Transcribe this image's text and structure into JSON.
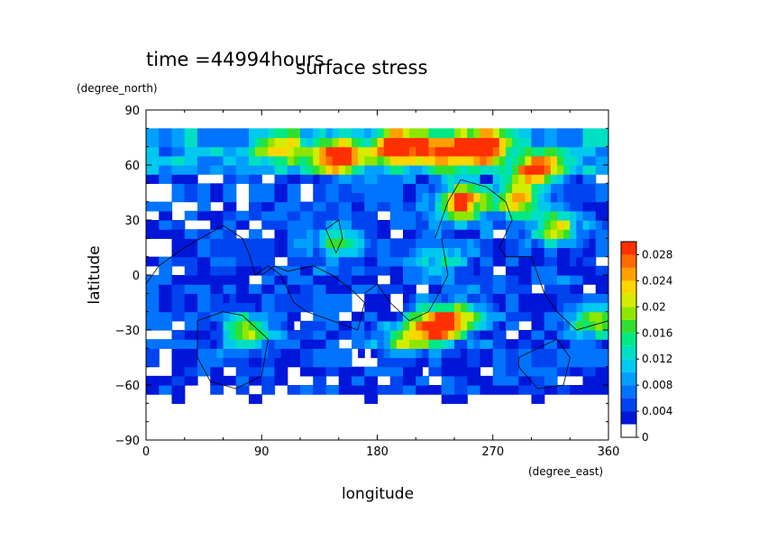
{
  "chart_data": {
    "type": "heatmap",
    "title": "surface stress",
    "time_label": "time =44994hours",
    "xlabel": "longitude",
    "ylabel": "latitude",
    "x_unit": "(degree_east)",
    "y_unit": "(degree_north)",
    "xlim": [
      0,
      360
    ],
    "ylim": [
      -90,
      90
    ],
    "x_ticks": [
      "0",
      "90",
      "180",
      "270",
      "360"
    ],
    "y_ticks": [
      "90",
      "60",
      "30",
      "0",
      "−30",
      "−60",
      "−90"
    ],
    "x_tick_values": [
      0,
      90,
      180,
      270,
      360
    ],
    "y_tick_values": [
      90,
      60,
      30,
      0,
      -30,
      -60,
      -90
    ],
    "colorbar": {
      "min": 0,
      "max": 0.03,
      "labels": [
        "0.028",
        "0.024",
        "0.02",
        "0.016",
        "0.012",
        "0.008",
        "0.004",
        "0"
      ],
      "label_values": [
        0.028,
        0.024,
        0.02,
        0.016,
        0.012,
        0.008,
        0.004,
        0
      ],
      "levels": [
        0,
        0.002,
        0.004,
        0.006,
        0.008,
        0.01,
        0.012,
        0.014,
        0.016,
        0.018,
        0.02,
        0.022,
        0.024,
        0.026,
        0.028,
        0.03
      ],
      "colors": [
        "#ffffff",
        "#0016d9",
        "#0044f0",
        "#0073ff",
        "#00a0ff",
        "#00c8ee",
        "#00dfc4",
        "#00e884",
        "#30e030",
        "#8ee600",
        "#d4ec00",
        "#ffd500",
        "#ffa000",
        "#ff6a00",
        "#ff3000"
      ]
    },
    "peaks": [
      {
        "lon": 195,
        "lat": 70,
        "value": 0.03
      },
      {
        "lon": 262,
        "lat": 70,
        "value": 0.03
      },
      {
        "lon": 150,
        "lat": 65,
        "value": 0.028
      },
      {
        "lon": 230,
        "lat": 68,
        "value": 0.026
      },
      {
        "lon": 305,
        "lat": 58,
        "value": 0.024
      },
      {
        "lon": 290,
        "lat": 42,
        "value": 0.024
      },
      {
        "lon": 245,
        "lat": 40,
        "value": 0.03
      },
      {
        "lon": 225,
        "lat": -28,
        "value": 0.03
      },
      {
        "lon": 245,
        "lat": -22,
        "value": 0.018
      },
      {
        "lon": 105,
        "lat": 70,
        "value": 0.018
      },
      {
        "lon": 320,
        "lat": 25,
        "value": 0.018
      },
      {
        "lon": 80,
        "lat": -30,
        "value": 0.018
      },
      {
        "lon": 148,
        "lat": 20,
        "value": 0.014
      },
      {
        "lon": 200,
        "lat": -35,
        "value": 0.014
      },
      {
        "lon": 230,
        "lat": 10,
        "value": 0.012
      },
      {
        "lon": 350,
        "lat": -25,
        "value": 0.016
      }
    ]
  }
}
